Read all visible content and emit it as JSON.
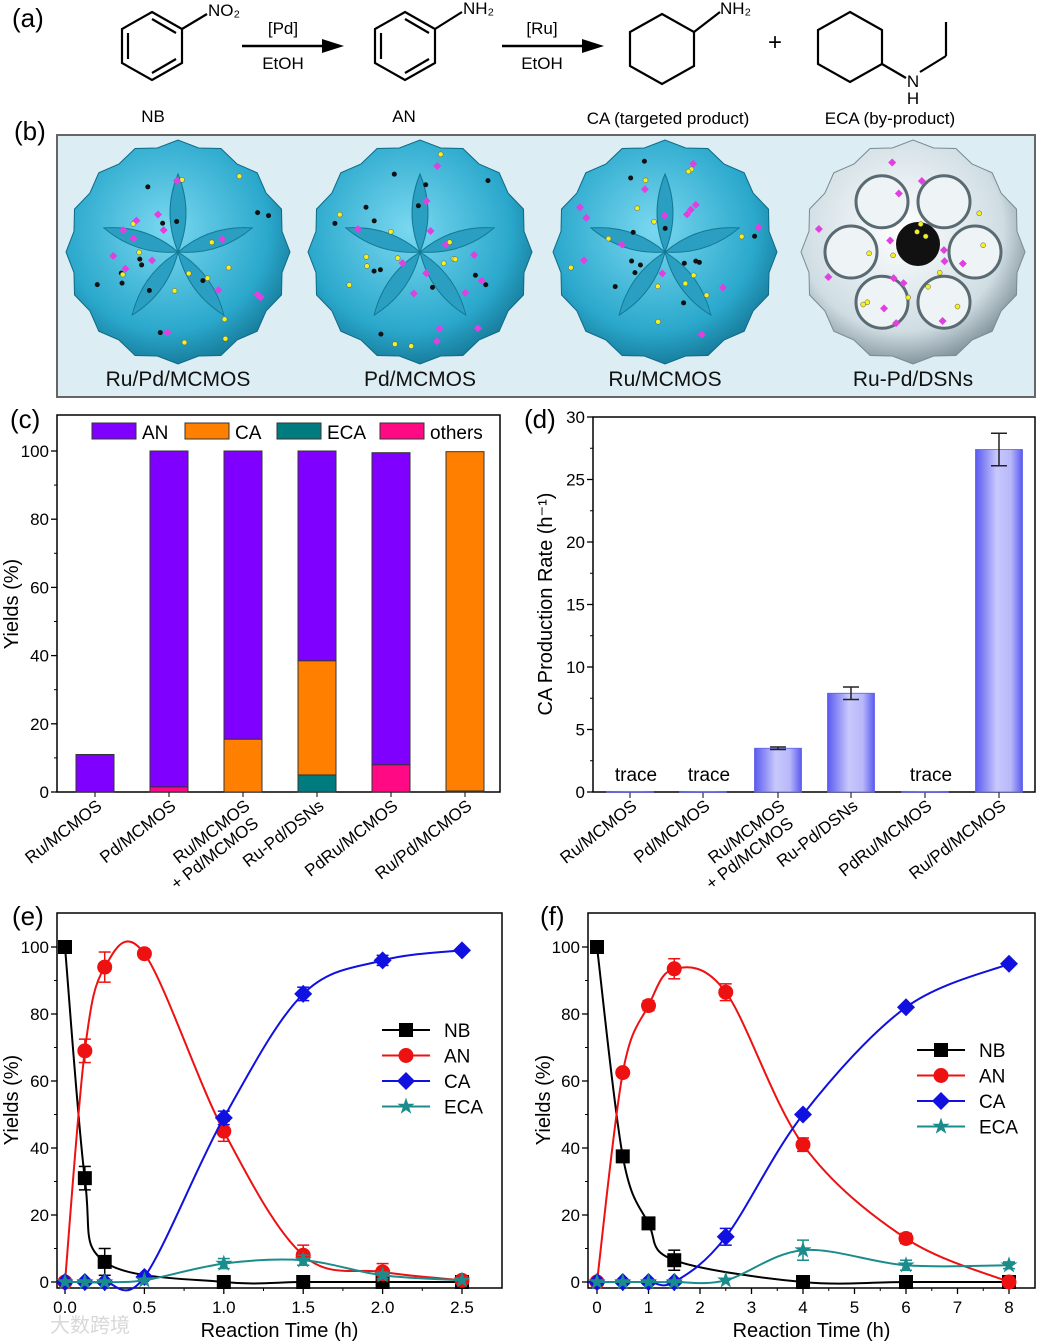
{
  "panels": {
    "a": "(a)",
    "b": "(b)",
    "c": "(c)",
    "d": "(d)",
    "e": "(e)",
    "f": "(f)"
  },
  "scheme": {
    "nb_sub": "NO₂",
    "an_sub": "NH₂",
    "ca_sub": "NH₂",
    "eca_n": "N",
    "eca_h": "H",
    "step1_top": "[Pd]",
    "step1_bottom": "EtOH",
    "step2_top": "[Ru]",
    "step2_bottom": "EtOH",
    "plus": "+",
    "label_nb": "NB",
    "label_an": "AN",
    "label_ca": "CA (targeted product)",
    "label_eca": "ECA (by-product)",
    "color_ca": "#e8141e",
    "color_eca": "#1a1ad8"
  },
  "catalysts": [
    {
      "label": "Ru/Pd/MCMOS",
      "style": "petal"
    },
    {
      "label": "Pd/MCMOS",
      "style": "petal"
    },
    {
      "label": "Ru/MCMOS",
      "style": "petal"
    },
    {
      "label": "Ru-Pd/DSNs",
      "style": "cell"
    }
  ],
  "watermark": "大数跨境",
  "chart_data": [
    {
      "id": "c",
      "type": "bar",
      "stacked": true,
      "ylabel": "Yields (%)",
      "ylim": [
        0,
        105
      ],
      "yticks": [
        0,
        20,
        40,
        60,
        80,
        100
      ],
      "categories": [
        "Ru/MCMOS",
        "Pd/MCMOS",
        "Ru/MCMOS\n+ Pd/MCMOS",
        "Ru-Pd/DSNs",
        "PdRu/MCMOS",
        "Ru/Pd/MCMOS"
      ],
      "legend_position": "top",
      "series": [
        {
          "name": "ECA",
          "color": "#007c80",
          "values": [
            0,
            0,
            0,
            5,
            0,
            0
          ]
        },
        {
          "name": "others",
          "color": "#ff0a84",
          "values": [
            0,
            1.5,
            0,
            0,
            8,
            0.3
          ]
        },
        {
          "name": "CA",
          "color": "#ff8000",
          "values": [
            0,
            0,
            15.5,
            33.5,
            0,
            99.5
          ]
        },
        {
          "name": "AN",
          "color": "#8000ff",
          "values": [
            11,
            98.5,
            84.5,
            61.5,
            91.5,
            0
          ]
        }
      ],
      "legend_order": [
        "AN",
        "CA",
        "ECA",
        "others"
      ]
    },
    {
      "id": "d",
      "type": "bar",
      "ylabel": "CA Production Rate (h⁻¹)",
      "ylim": [
        0,
        30
      ],
      "yticks": [
        0,
        5,
        10,
        15,
        20,
        25,
        30
      ],
      "categories": [
        "Ru/MCMOS",
        "Pd/MCMOS",
        "Ru/MCMOS\n+ Pd/MCMOS",
        "Ru-Pd/DSNs",
        "PdRu/MCMOS",
        "Ru/Pd/MCMOS"
      ],
      "values": [
        0.05,
        0.05,
        3.5,
        7.9,
        0.05,
        27.4
      ],
      "errors": [
        0,
        0,
        0.1,
        0.5,
        0,
        1.3
      ],
      "annotations": [
        "trace",
        "trace",
        "",
        "",
        "trace",
        ""
      ],
      "color": "#6a6af5"
    },
    {
      "id": "e",
      "type": "line",
      "xlabel": "Reaction Time (h)",
      "ylabel": "Yields (%)",
      "xlim": [
        -0.06,
        2.72
      ],
      "ylim": [
        -2,
        105
      ],
      "xticks": [
        "0.0",
        "0.5",
        "1.0",
        "1.5",
        "2.0",
        "2.5"
      ],
      "yticks": [
        0,
        20,
        40,
        60,
        80,
        100
      ],
      "legend_position": "center-right",
      "series": [
        {
          "name": "NB",
          "color": "#000000",
          "marker": "square",
          "x": [
            0,
            0.125,
            0.25,
            1,
            1.5,
            2,
            2.5
          ],
          "y": [
            100,
            31,
            6,
            0,
            0,
            0,
            0
          ],
          "err": [
            0,
            3.5,
            4,
            0,
            0,
            0,
            0
          ]
        },
        {
          "name": "AN",
          "color": "#ee1111",
          "marker": "circle",
          "x": [
            0,
            0.125,
            0.25,
            0.5,
            1,
            1.5,
            2,
            2.5
          ],
          "y": [
            0,
            69,
            94,
            98,
            45,
            8,
            3,
            0.5
          ],
          "err": [
            0,
            3.5,
            4.5,
            0,
            3,
            3,
            2.5,
            0
          ]
        },
        {
          "name": "CA",
          "color": "#1010e0",
          "marker": "diamond",
          "x": [
            0,
            0.125,
            0.25,
            0.5,
            1,
            1.5,
            2,
            2.5
          ],
          "y": [
            0,
            0,
            0,
            1.5,
            49,
            86,
            96,
            99
          ],
          "err": [
            0,
            0,
            0,
            0,
            2,
            2,
            1.5,
            0
          ]
        },
        {
          "name": "ECA",
          "color": "#1a8c8c",
          "marker": "star",
          "x": [
            0,
            0.125,
            0.25,
            0.5,
            1,
            1.5,
            2,
            2.5
          ],
          "y": [
            0,
            0,
            0,
            0.5,
            5.5,
            6.5,
            2,
            0.5
          ],
          "err": [
            0,
            0,
            0,
            0,
            1.5,
            1.5,
            1,
            0
          ]
        }
      ]
    },
    {
      "id": "f",
      "type": "line",
      "xlabel": "Reaction Time (h)",
      "ylabel": "Yields (%)",
      "xlim": [
        -0.18,
        8.5
      ],
      "ylim": [
        -2,
        105
      ],
      "xticks": [
        "0",
        "1",
        "2",
        "3",
        "4",
        "5",
        "6",
        "7",
        "8"
      ],
      "yticks": [
        0,
        20,
        40,
        60,
        80,
        100
      ],
      "legend_position": "center-right",
      "series": [
        {
          "name": "NB",
          "color": "#000000",
          "marker": "square",
          "x": [
            0,
            0.5,
            1,
            1.5,
            4,
            6,
            8
          ],
          "y": [
            100,
            37.5,
            17.5,
            6.5,
            0,
            0,
            0
          ],
          "err": [
            0,
            1,
            1.5,
            3,
            0,
            0,
            0
          ]
        },
        {
          "name": "AN",
          "color": "#ee1111",
          "marker": "circle",
          "x": [
            0,
            0.5,
            1,
            1.5,
            2.5,
            4,
            6,
            8
          ],
          "y": [
            0,
            62.5,
            82.5,
            93.5,
            86.5,
            41,
            13,
            0
          ],
          "err": [
            0,
            0,
            1.5,
            3,
            2.5,
            2,
            1.5,
            0
          ]
        },
        {
          "name": "CA",
          "color": "#1010e0",
          "marker": "diamond",
          "x": [
            0,
            0.5,
            1,
            1.5,
            2.5,
            4,
            6,
            8
          ],
          "y": [
            0,
            0,
            0,
            0,
            13.5,
            50,
            82,
            95
          ],
          "err": [
            0,
            0,
            0,
            0,
            2.5,
            0,
            0,
            0
          ]
        },
        {
          "name": "ECA",
          "color": "#1a8c8c",
          "marker": "star",
          "x": [
            0,
            0.5,
            1,
            1.5,
            2.5,
            4,
            6,
            8
          ],
          "y": [
            0,
            0,
            0,
            0,
            0.5,
            9.5,
            5,
            5
          ],
          "err": [
            0,
            0,
            0,
            0,
            0,
            3,
            1.5,
            1
          ]
        }
      ]
    }
  ]
}
